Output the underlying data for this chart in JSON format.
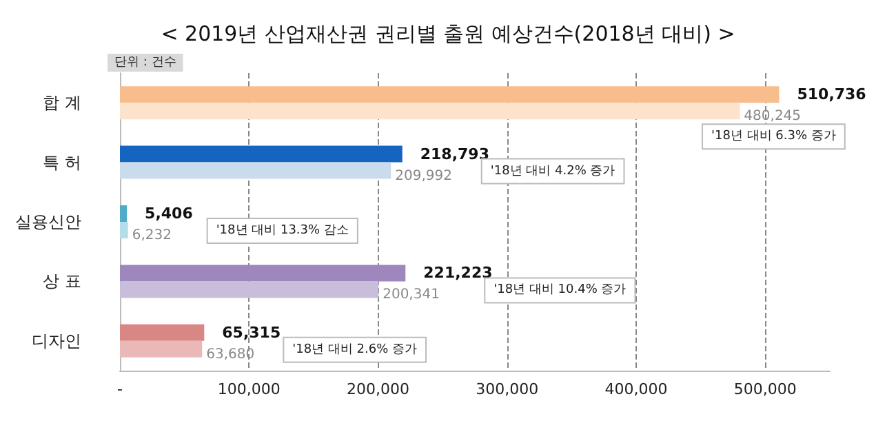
{
  "chart_data": {
    "type": "bar",
    "orientation": "horizontal",
    "title": "< 2019년 산업재산권 권리별 출원 예상건수(2018년 대비) >",
    "categories": [
      "합 계",
      "특 허",
      "실용신안",
      "상 표",
      "디자인"
    ],
    "series": [
      {
        "colors": [
          "#f8bd8c",
          "#1565c0",
          "#4eacc8",
          "#9d87bd",
          "#d88784"
        ],
        "values": [
          510736,
          218793,
          5406,
          221223,
          65315
        ],
        "value_labels": [
          "510,736",
          "218,793",
          "5,406",
          "221,223",
          "65,315"
        ]
      },
      {
        "colors": [
          "#fde3cc",
          "#c9dbec",
          "#b3dde9",
          "#c9bddc",
          "#eab8b6"
        ],
        "values": [
          480245,
          209992,
          6232,
          200341,
          63680
        ],
        "value_labels": [
          "480,245",
          "209,992",
          "6,232",
          "200,341",
          "63,680"
        ]
      }
    ],
    "xlim": [
      0,
      550000
    ],
    "xticks": [
      {
        "value": 0,
        "label": "-"
      },
      {
        "value": 100000,
        "label": "100,000"
      },
      {
        "value": 200000,
        "label": "200,000"
      },
      {
        "value": 300000,
        "label": "300,000"
      },
      {
        "value": 400000,
        "label": "400,000"
      },
      {
        "value": 500000,
        "label": "500,000"
      }
    ],
    "grid": "x",
    "annotations": [
      "단위 : 건수",
      "'18년 대비 6.3% 증가",
      "'18년 대비 4.2% 증가",
      "'18년 대비 13.3% 감소",
      "'18년 대비 10.4% 증가",
      "'18년 대비 2.6% 증가"
    ]
  }
}
